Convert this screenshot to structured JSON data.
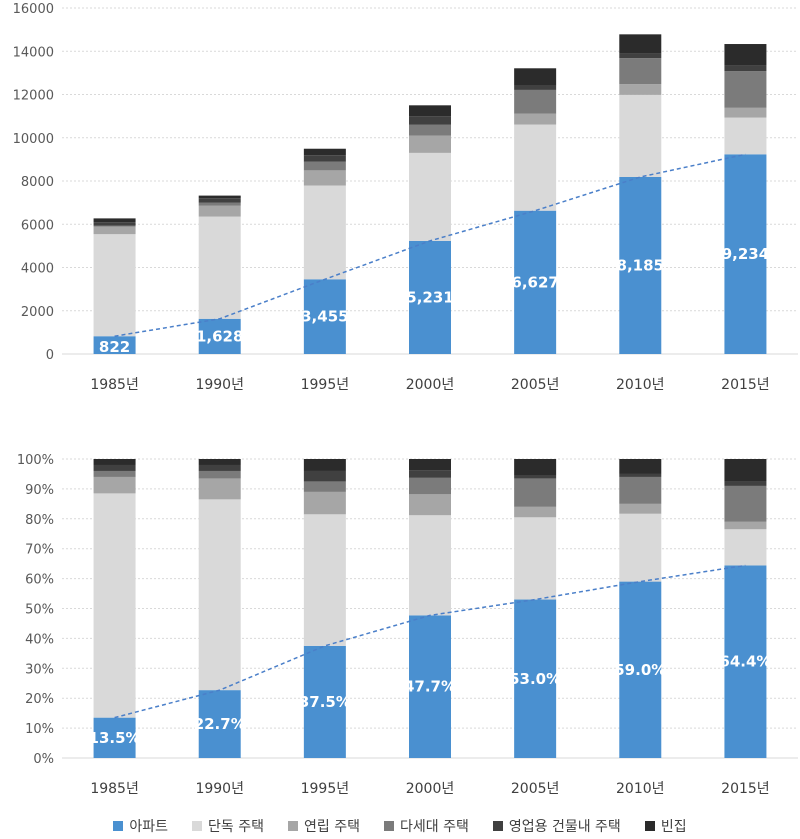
{
  "colors": {
    "apartment": "#4a90d0",
    "detached": "#d9d9d9",
    "rowhouse": "#a6a6a6",
    "multiplex": "#7b7b7b",
    "commercial": "#404040",
    "vacant": "#2b2b2b",
    "trend": "#4a7fc9",
    "grid": "#d9d9d9"
  },
  "legend": [
    "아파트",
    "단독 주택",
    "연립 주택",
    "다세대 주택",
    "영업용 건물내 주택",
    "빈집"
  ],
  "chart_data": [
    {
      "type": "bar",
      "stacked": true,
      "categories": [
        "1985년",
        "1990년",
        "1995년",
        "2000년",
        "2005년",
        "2010년",
        "2015년"
      ],
      "ylim": [
        0,
        16000
      ],
      "yticks": [
        "0",
        "2000",
        "4000",
        "6000",
        "8000",
        "10000",
        "12000",
        "14000",
        "16000"
      ],
      "grid": true,
      "series": [
        {
          "name": "아파트",
          "values": [
            822,
            1628,
            3455,
            5231,
            6627,
            8185,
            9234
          ]
        },
        {
          "name": "단독 주택",
          "values": [
            4719,
            4727,
            4337,
            4069,
            3985,
            3797,
            1700
          ]
        },
        {
          "name": "연립 주택",
          "values": [
            350,
            500,
            700,
            800,
            500,
            500,
            450
          ]
        },
        {
          "name": "다세대 주택",
          "values": [
            50,
            150,
            400,
            500,
            1100,
            1200,
            1700
          ]
        },
        {
          "name": "영업용 건물내 주택",
          "values": [
            150,
            200,
            300,
            400,
            200,
            200,
            250
          ]
        },
        {
          "name": "빈집",
          "values": [
            180,
            120,
            300,
            500,
            800,
            900,
            1000
          ]
        }
      ],
      "data_labels": [
        "822",
        "1,628",
        "3,455",
        "5,231",
        "6,627",
        "8,185",
        "9,234"
      ],
      "trend_line": true
    },
    {
      "type": "bar",
      "stacked": true,
      "percent": true,
      "categories": [
        "1985년",
        "1990년",
        "1995년",
        "2000년",
        "2005년",
        "2010년",
        "2015년"
      ],
      "ylim": [
        0,
        100
      ],
      "yticks": [
        "0%",
        "10%",
        "20%",
        "30%",
        "40%",
        "50%",
        "60%",
        "70%",
        "80%",
        "90%",
        "100%"
      ],
      "grid": true,
      "series": [
        {
          "name": "아파트",
          "values": [
            13.5,
            22.7,
            37.5,
            47.7,
            53.0,
            59.0,
            64.4
          ]
        },
        {
          "name": "단독 주택",
          "values": [
            75.0,
            63.8,
            44.0,
            33.5,
            27.5,
            22.7,
            12.1
          ]
        },
        {
          "name": "연립 주택",
          "values": [
            5.5,
            7.0,
            7.5,
            7.0,
            3.5,
            3.3,
            2.5
          ]
        },
        {
          "name": "다세대 주택",
          "values": [
            2.0,
            2.5,
            3.5,
            5.5,
            9.5,
            9.0,
            12.0
          ]
        },
        {
          "name": "영업용 건물내 주택",
          "values": [
            2.0,
            2.0,
            3.5,
            2.5,
            1.0,
            1.0,
            1.5
          ]
        },
        {
          "name": "빈집",
          "values": [
            2.0,
            2.0,
            4.0,
            3.8,
            5.5,
            5.0,
            7.5
          ]
        }
      ],
      "data_labels": [
        "13.5%",
        "22.7%",
        "37.5%",
        "47.7%",
        "53.0%",
        "59.0%",
        "64.4%"
      ],
      "trend_line": true
    }
  ]
}
